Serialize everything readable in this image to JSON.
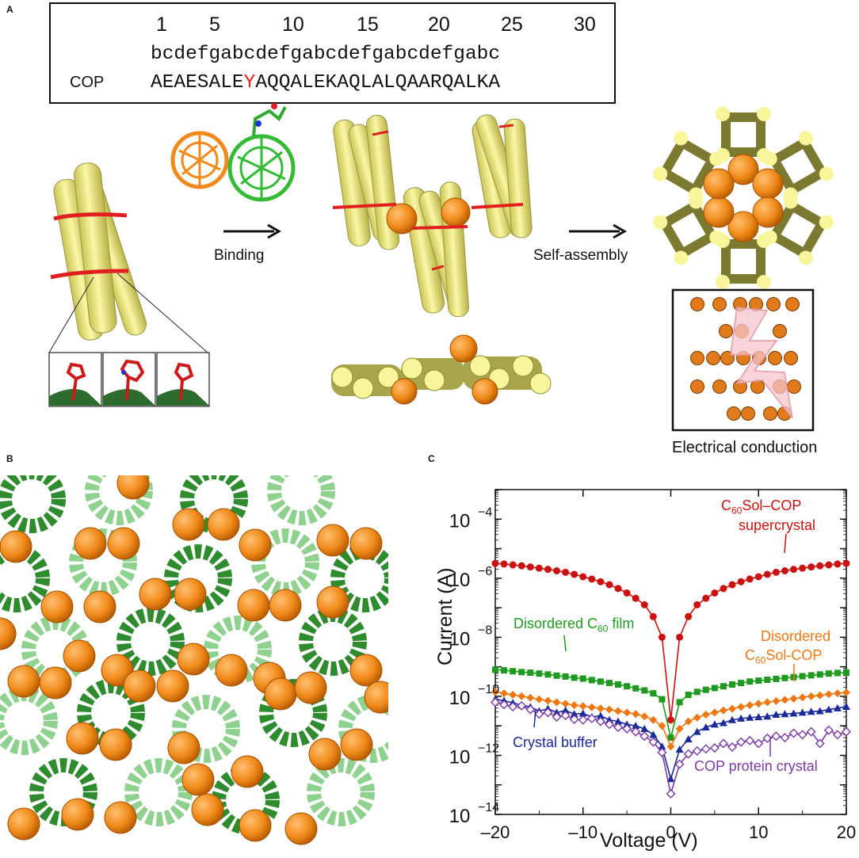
{
  "panels": {
    "a": "A",
    "b": "B",
    "c": "C"
  },
  "sequence": {
    "positions": [
      "1",
      "5",
      "10",
      "15",
      "20",
      "25",
      "30"
    ],
    "heptad": "bcdefgabcdefgabcdefgabcdefgabc",
    "name": "COP",
    "seq_before": "AEAESALE",
    "seq_highlight": "Y",
    "seq_after": "AQQALEKAQLALQAARQALKA",
    "highlight_color": "#e02020"
  },
  "schematic": {
    "binding_label": "Binding",
    "assembly_label": "Self-assembly",
    "conduction_label": "Electrical conduction"
  },
  "colors": {
    "helix": "#f4f08a",
    "helix_dark": "#8c8a3a",
    "fullerene": "#f08a1a",
    "green": "#2e8b2e",
    "light_green": "#8fd18f"
  },
  "chart_data": {
    "type": "line",
    "xlabel": "Voltage (V)",
    "ylabel": "Current (A)",
    "xlim": [
      -20,
      20
    ],
    "ylim_exp": [
      -14,
      -3
    ],
    "y_scale": "log",
    "x_ticks": [
      "–20",
      "–10",
      "0",
      "10",
      "20"
    ],
    "y_ticks_exp": [
      -14,
      -12,
      -10,
      -8,
      -6,
      -4
    ],
    "y_tick_base": "10",
    "x": [
      -20,
      -19,
      -18,
      -17,
      -16,
      -15,
      -14,
      -13,
      -12,
      -11,
      -10,
      -9,
      -8,
      -7,
      -6,
      -5,
      -4,
      -3,
      -2,
      -1,
      0,
      1,
      2,
      3,
      4,
      5,
      6,
      7,
      8,
      9,
      10,
      11,
      12,
      13,
      14,
      15,
      16,
      17,
      18,
      19,
      20
    ],
    "series": [
      {
        "label_lines": [
          "C60Sol–COP",
          "supercrystal"
        ],
        "color": "#cc1111",
        "marker": "circle",
        "log_values": [
          -5.5,
          -5.52,
          -5.55,
          -5.58,
          -5.62,
          -5.66,
          -5.7,
          -5.75,
          -5.8,
          -5.87,
          -5.95,
          -6.03,
          -6.12,
          -6.22,
          -6.35,
          -6.5,
          -6.68,
          -6.9,
          -7.3,
          -8.0,
          -10.8,
          -8.0,
          -7.3,
          -6.9,
          -6.68,
          -6.5,
          -6.35,
          -6.22,
          -6.12,
          -6.03,
          -5.95,
          -5.87,
          -5.8,
          -5.75,
          -5.7,
          -5.66,
          -5.62,
          -5.58,
          -5.55,
          -5.52,
          -5.5
        ]
      },
      {
        "label_lines": [
          "Disordered C60 film"
        ],
        "color": "#1e9a1e",
        "marker": "square",
        "log_values": [
          -9.1,
          -9.12,
          -9.15,
          -9.18,
          -9.2,
          -9.23,
          -9.26,
          -9.3,
          -9.33,
          -9.37,
          -9.4,
          -9.45,
          -9.5,
          -9.55,
          -9.6,
          -9.66,
          -9.73,
          -9.8,
          -9.9,
          -10.1,
          -11.4,
          -10.2,
          -9.95,
          -9.85,
          -9.78,
          -9.72,
          -9.66,
          -9.6,
          -9.55,
          -9.5,
          -9.47,
          -9.44,
          -9.41,
          -9.38,
          -9.35,
          -9.32,
          -9.29,
          -9.26,
          -9.23,
          -9.21,
          -9.2
        ]
      },
      {
        "label_lines": [
          "Disordered",
          "C60Sol-COP"
        ],
        "color": "#ee7711",
        "marker": "diamond",
        "log_values": [
          -9.85,
          -9.9,
          -9.95,
          -10.0,
          -10.05,
          -10.1,
          -10.15,
          -10.2,
          -10.25,
          -10.3,
          -10.33,
          -10.37,
          -10.41,
          -10.45,
          -10.5,
          -10.55,
          -10.6,
          -10.68,
          -10.8,
          -11.0,
          -11.7,
          -11.1,
          -10.85,
          -10.72,
          -10.62,
          -10.55,
          -10.48,
          -10.42,
          -10.36,
          -10.3,
          -10.25,
          -10.2,
          -10.16,
          -10.12,
          -10.08,
          -10.04,
          -10.0,
          -9.97,
          -9.93,
          -9.9,
          -9.87
        ]
      },
      {
        "label_lines": [
          "Crystal buffer"
        ],
        "color": "#1a2a9a",
        "marker": "triangle",
        "log_values": [
          -10.1,
          -10.15,
          -10.22,
          -10.3,
          -10.36,
          -10.5,
          -10.42,
          -10.55,
          -10.48,
          -10.6,
          -10.58,
          -10.7,
          -10.66,
          -10.8,
          -10.85,
          -10.95,
          -11.0,
          -11.1,
          -11.3,
          -11.7,
          -12.8,
          -11.8,
          -11.45,
          -11.2,
          -11.05,
          -10.95,
          -10.9,
          -10.8,
          -10.75,
          -10.72,
          -10.7,
          -10.68,
          -10.62,
          -10.6,
          -10.58,
          -10.55,
          -10.52,
          -10.5,
          -10.45,
          -10.4,
          -10.35
        ]
      },
      {
        "label_lines": [
          "COP protein crystal"
        ],
        "color": "#7a3aa8",
        "marker": "open-diamond",
        "log_values": [
          -10.2,
          -10.28,
          -10.35,
          -10.32,
          -10.45,
          -10.6,
          -10.55,
          -10.7,
          -10.65,
          -10.78,
          -10.8,
          -10.75,
          -10.85,
          -10.95,
          -11.05,
          -11.1,
          -11.2,
          -11.35,
          -11.55,
          -11.9,
          -13.3,
          -12.3,
          -11.95,
          -11.85,
          -11.78,
          -11.75,
          -11.6,
          -11.72,
          -11.55,
          -11.5,
          -11.6,
          -11.42,
          -11.35,
          -11.4,
          -11.25,
          -11.3,
          -11.2,
          -11.6,
          -11.15,
          -11.3,
          -11.2
        ]
      }
    ]
  }
}
